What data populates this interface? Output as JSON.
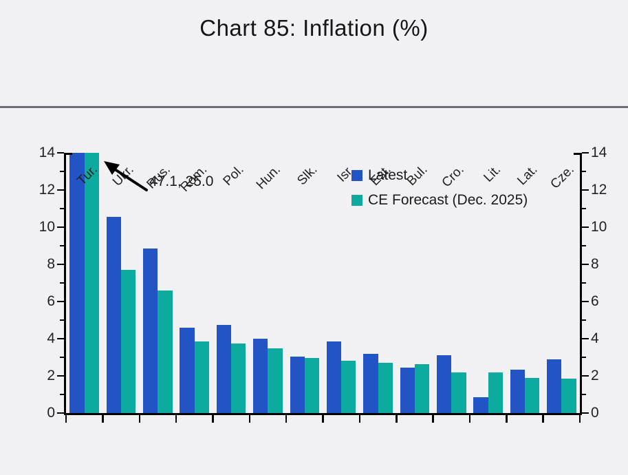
{
  "header": {
    "title": "Chart 85: Inflation (%)"
  },
  "chart_data": {
    "type": "bar",
    "title": "Chart 85: Inflation (%)",
    "categories": [
      "Tur.",
      "Ukr.",
      "Rus.",
      "Rom.",
      "Pol.",
      "Hun.",
      "Slk.",
      "Isr.",
      "Est.",
      "Bul.",
      "Cro.",
      "Lit.",
      "Lat.",
      "Cze."
    ],
    "series": [
      {
        "name": "Latest",
        "color": "#2254c5",
        "values": [
          47.1,
          10.55,
          8.85,
          4.6,
          4.75,
          4.0,
          3.05,
          3.85,
          3.2,
          2.45,
          3.1,
          0.85,
          2.35,
          2.9
        ]
      },
      {
        "name": "CE Forecast (Dec. 2025)",
        "color": "#0dab9d",
        "values": [
          25.0,
          7.7,
          6.6,
          3.85,
          3.75,
          3.5,
          2.95,
          2.8,
          2.7,
          2.65,
          2.2,
          2.2,
          1.9,
          1.85
        ]
      }
    ],
    "ylim": [
      0,
      14
    ],
    "yticks": [
      0,
      2,
      4,
      6,
      8,
      10,
      12,
      14
    ],
    "yticks_minor": [
      1,
      3,
      5,
      7,
      9,
      11,
      13
    ],
    "y_axis_sides": [
      "left",
      "right"
    ],
    "values_clipped_at_ymax": true,
    "annotation": {
      "text": "47.1, 25.0",
      "target_category": "Tur."
    },
    "legend_position": "upper right",
    "grid": false,
    "colors": {
      "background": "#f1f1f4",
      "axis": "#000000",
      "divider": "#6b6b79",
      "text": "#1b1b1b"
    }
  }
}
